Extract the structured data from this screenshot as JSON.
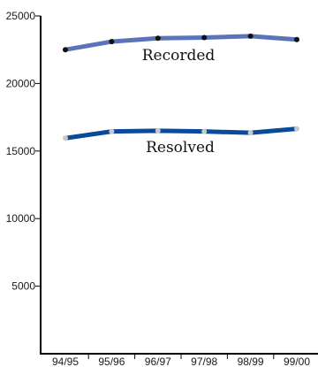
{
  "chart_data": {
    "type": "line",
    "categories": [
      "94/95",
      "95/96",
      "96/97",
      "97/98",
      "98/99",
      "99/00"
    ],
    "ylim": [
      0,
      25000
    ],
    "yticks": [
      5000,
      10000,
      15000,
      20000,
      25000
    ],
    "grid": false,
    "legend": "none",
    "series": [
      {
        "name": "Recorded",
        "values": [
          22500,
          23100,
          23350,
          23400,
          23500,
          23250
        ],
        "color": "#5b73b8",
        "marker_color": "#111111"
      },
      {
        "name": "Resolved",
        "values": [
          15950,
          16450,
          16500,
          16450,
          16350,
          16650
        ],
        "color": "#0a4a9a",
        "marker_color": "#c8c8c8"
      }
    ]
  }
}
